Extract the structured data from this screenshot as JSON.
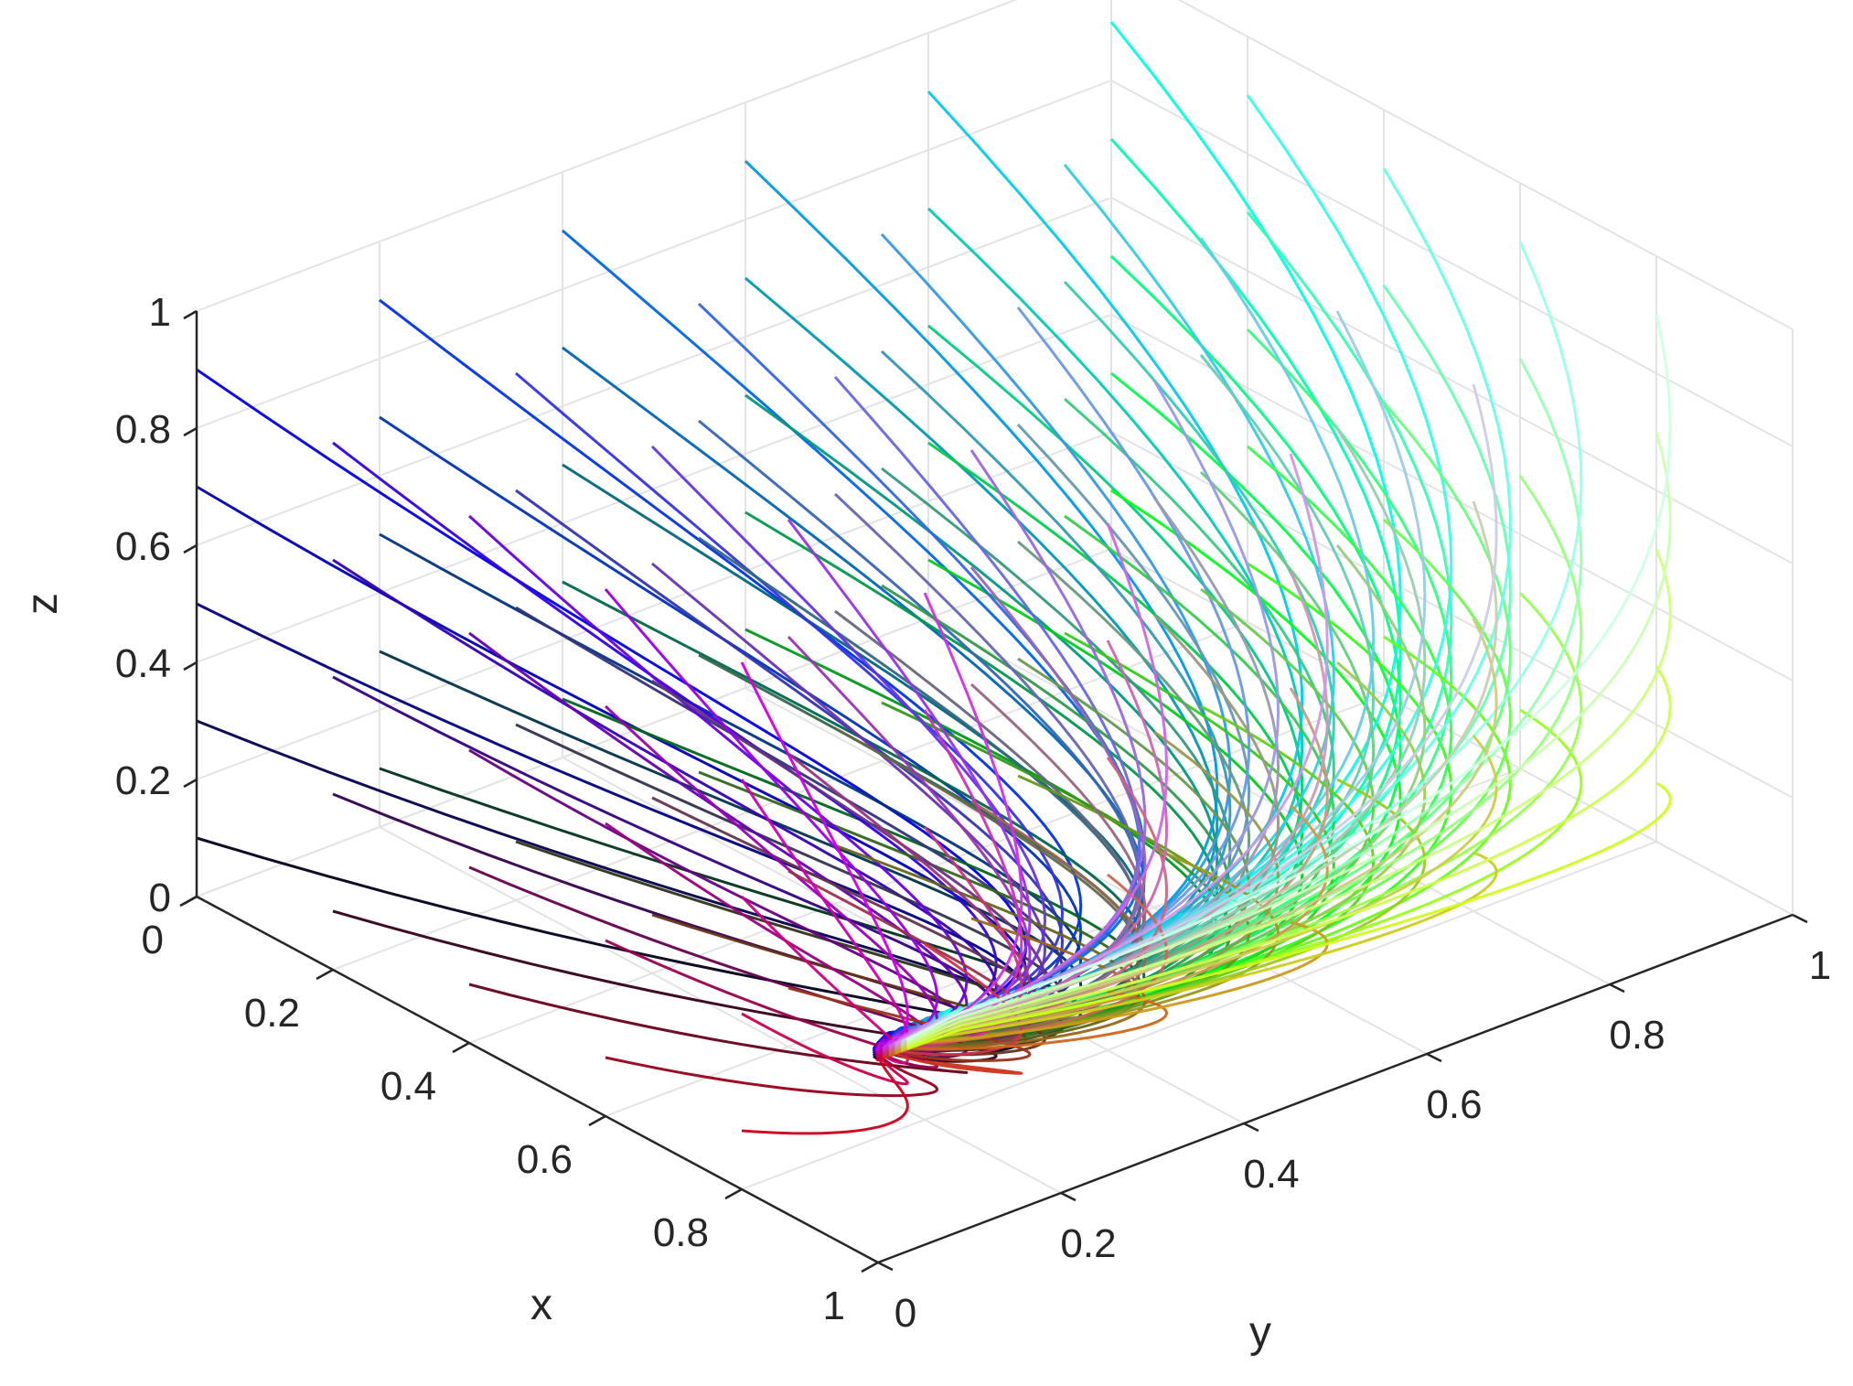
{
  "chart_data": {
    "type": "line",
    "projection": "3d",
    "title": "",
    "xlabel": "x",
    "ylabel": "y",
    "zlabel": "z",
    "xlim": [
      0,
      1
    ],
    "ylim": [
      0,
      1
    ],
    "zlim": [
      0,
      1
    ],
    "x_ticks": [
      "0",
      "0.2",
      "0.4",
      "0.6",
      "0.8",
      "1"
    ],
    "y_ticks": [
      "0",
      "0.2",
      "0.4",
      "0.6",
      "0.8",
      "1"
    ],
    "z_ticks": [
      "0",
      "0.2",
      "0.4",
      "0.6",
      "0.8",
      "1"
    ],
    "grid": true,
    "legend": false,
    "equilibrium_point": [
      1,
      0,
      0.35
    ],
    "initial_conditions": {
      "x0": [
        0.0,
        0.2,
        0.4,
        0.6,
        0.8
      ],
      "y0": [
        0.0,
        0.2,
        0.4,
        0.6,
        0.8,
        1.0
      ],
      "z0": [
        0.1,
        0.3,
        0.5,
        0.7,
        0.9
      ]
    },
    "trajectory_color_rule": "rgb(x0, y0, z0)"
  }
}
